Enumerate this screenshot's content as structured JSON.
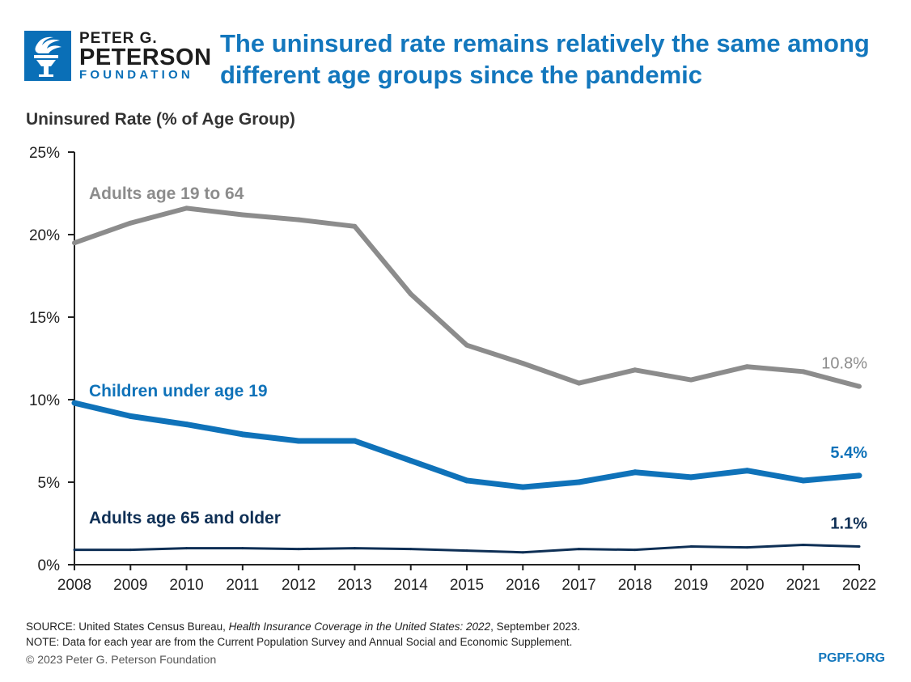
{
  "header": {
    "logo": {
      "line1": "PETER G.",
      "line2": "PETERSON",
      "line3": "FOUNDATION"
    },
    "title_line1": "The uninsured rate remains relatively the same among",
    "title_line2": "different age groups since the pandemic"
  },
  "footer": {
    "source_prefix": "SOURCE: United States Census Bureau, ",
    "source_title": "Health Insurance Coverage in the United States: 2022",
    "source_suffix": ", September 2023.",
    "note": "NOTE: Data for each year are from the Current Population Survey and Annual Social and Economic Supplement.",
    "copyright": "© 2023 Peter G. Peterson Foundation",
    "url": "PGPF.ORG"
  },
  "chart_data": {
    "type": "line",
    "ylabel": "Uninsured Rate (% of Age Group)",
    "ylim": [
      0,
      25
    ],
    "yticks": [
      0,
      5,
      10,
      15,
      20,
      25
    ],
    "ytick_labels": [
      "0%",
      "5%",
      "10%",
      "15%",
      "20%",
      "25%"
    ],
    "x": [
      2008,
      2009,
      2010,
      2011,
      2012,
      2013,
      2014,
      2015,
      2016,
      2017,
      2018,
      2019,
      2020,
      2021,
      2022
    ],
    "x_labels": [
      "2008",
      "2009",
      "2010",
      "2011",
      "2012",
      "2013",
      "2014",
      "2015",
      "2016",
      "2017",
      "2018",
      "2019",
      "2020",
      "2021",
      "2022"
    ],
    "series": [
      {
        "name": "Adults age 19 to 64",
        "color": "#8c8c8c",
        "values": [
          19.5,
          20.7,
          21.6,
          21.2,
          20.9,
          20.5,
          16.4,
          13.3,
          12.2,
          11.0,
          11.8,
          11.2,
          12.0,
          11.7,
          10.8
        ],
        "end_label": "10.8%"
      },
      {
        "name": "Children under age 19",
        "color": "#0f72b9",
        "values": [
          9.8,
          9.0,
          8.5,
          7.9,
          7.5,
          7.5,
          6.3,
          5.1,
          4.7,
          5.0,
          5.6,
          5.3,
          5.7,
          5.1,
          5.4
        ],
        "end_label": "5.4%"
      },
      {
        "name": "Adults age 65 and older",
        "color": "#0e2f55",
        "values": [
          0.9,
          0.9,
          1.0,
          1.0,
          0.95,
          1.0,
          0.95,
          0.85,
          0.75,
          0.95,
          0.9,
          1.1,
          1.05,
          1.2,
          1.1
        ],
        "end_label": "1.1%"
      }
    ]
  }
}
